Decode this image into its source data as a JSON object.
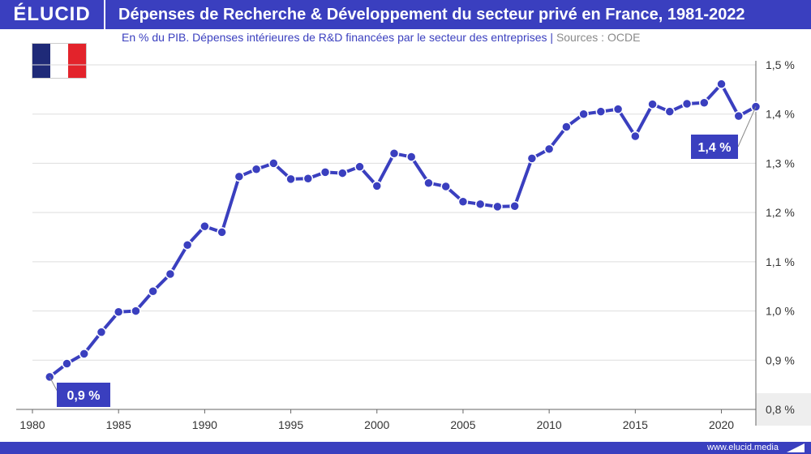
{
  "header": {
    "logo": "ÉLUCID",
    "title": "Dépenses de Recherche & Développement du secteur privé en France, 1981-2022"
  },
  "subtitle": {
    "text": "En % du PIB. Dépenses intérieures de R&D financées par le secteur des entreprises",
    "separator": "|",
    "source": "Sources : OCDE"
  },
  "flag": {
    "colors": [
      "#1f2a78",
      "#ffffff",
      "#e3232b"
    ]
  },
  "footer": {
    "site": "www.elucid.media"
  },
  "colors": {
    "accent": "#3a3fbf",
    "line": "#3a3fbf"
  },
  "chart_data": {
    "type": "line",
    "title": "Dépenses de Recherche & Développement du secteur privé en France, 1981-2022",
    "subtitle": "En % du PIB. Dépenses intérieures de R&D financées par le secteur des entreprises",
    "x": [
      1981,
      1982,
      1983,
      1984,
      1985,
      1986,
      1987,
      1988,
      1989,
      1990,
      1991,
      1992,
      1993,
      1994,
      1995,
      1996,
      1997,
      1998,
      1999,
      2000,
      2001,
      2002,
      2003,
      2004,
      2005,
      2006,
      2007,
      2008,
      2009,
      2010,
      2011,
      2012,
      2013,
      2014,
      2015,
      2016,
      2017,
      2018,
      2019,
      2020,
      2021,
      2022
    ],
    "series": [
      {
        "values": [
          0.866,
          0.893,
          0.913,
          0.957,
          0.998,
          1.0,
          1.04,
          1.075,
          1.134,
          1.172,
          1.16,
          1.273,
          1.288,
          1.3,
          1.268,
          1.269,
          1.282,
          1.28,
          1.293,
          1.254,
          1.32,
          1.313,
          1.26,
          1.253,
          1.222,
          1.217,
          1.212,
          1.213,
          1.31,
          1.329,
          1.374,
          1.4,
          1.405,
          1.41,
          1.355,
          1.42,
          1.405,
          1.421,
          1.423,
          1.461,
          1.396,
          1.415
        ]
      }
    ],
    "xlim": [
      1980,
      2022
    ],
    "ylim": [
      0.8,
      1.5
    ],
    "xticks": [
      1980,
      1985,
      1990,
      1995,
      2000,
      2005,
      2010,
      2015,
      2020
    ],
    "xtick_labels": [
      "1980",
      "1985",
      "1990",
      "1995",
      "2000",
      "2005",
      "2010",
      "2015",
      "2020"
    ],
    "yticks": [
      0.8,
      0.9,
      1.0,
      1.1,
      1.2,
      1.3,
      1.4,
      1.5
    ],
    "ytick_labels": [
      "0,8 %",
      "0,9 %",
      "1,0 %",
      "1,1 %",
      "1,2 %",
      "1,3 %",
      "1,4 %",
      "1,5 %"
    ],
    "y_axis_side": "right",
    "grid": true,
    "annotations": [
      {
        "x": 1981,
        "text": "0,9 %"
      },
      {
        "x": 2022,
        "text": "1,4 %"
      }
    ]
  }
}
